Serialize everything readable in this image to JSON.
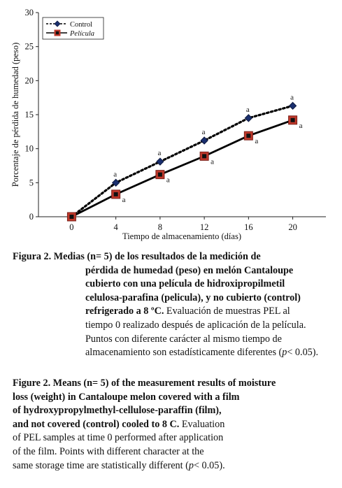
{
  "chart_data": {
    "type": "line",
    "ylabel": "Porcentaje de pérdida de humedad (peso)",
    "xlabel": "Tiempo de almacenamiento (días)",
    "x": [
      0,
      4,
      8,
      12,
      16,
      20
    ],
    "xlim": [
      -3,
      23
    ],
    "ylim": [
      0,
      30
    ],
    "yticks": [
      0,
      5,
      10,
      15,
      20,
      25,
      30
    ],
    "xticks": [
      0,
      4,
      8,
      12,
      16,
      20
    ],
    "grid": false,
    "legend_position": "top-left",
    "series": [
      {
        "name": "Control",
        "style": "dotted",
        "marker": "diamond",
        "color": "#1a2f6e",
        "values": [
          0,
          5.0,
          8.1,
          11.2,
          14.5,
          16.3
        ],
        "labels": [
          "",
          "a",
          "a",
          "a",
          "a",
          "a"
        ]
      },
      {
        "name": "Película",
        "style": "solid",
        "marker": "square",
        "color": "#c0392b",
        "values": [
          0,
          3.3,
          6.2,
          8.9,
          11.9,
          14.2
        ],
        "labels": [
          "",
          "a",
          "a",
          "a",
          "a",
          "a"
        ]
      }
    ]
  },
  "caption_es": {
    "label": "Figura 2.",
    "bold": "Medias (n= 5) de los resultados de la medición de pérdida de humedad (peso) en melón Cantaloupe cubierto con una película de hidroxipropilmetil celulosa-parafina (pelicula), y no cubierto (control) refrigerado a 8 ºC.",
    "lines": [
      "Medias (n= 5) de los resultados de la medición de",
      "pérdida de humedad (peso) en melón Cantaloupe",
      "cubierto con una película de hidroxipropilmetil",
      "celulosa-parafina (pelicula), y no cubierto (control)"
    ],
    "last_bold": "refrigerado a 8 ºC.",
    "normal_1": " Evaluación de muestras PEL al",
    "normal_2": "tiempo 0 realizado después de aplicación de la película.",
    "normal_3": "Puntos con diferente carácter al mismo tiempo de",
    "normal_4": "almacenamiento son estadísticamente diferentes (",
    "p": "p",
    "tail": "< 0.05)."
  },
  "caption_en": {
    "label": "Figure 2.",
    "lines": [
      "Means (n= 5) of the measurement results of moisture",
      "loss (weight) in Cantaloupe melon covered with a film",
      "of hydroxypropylmethyl-cellulose-paraffin (film),"
    ],
    "last_bold": "and not covered (control) cooled to 8 C.",
    "normal_1": " Evaluation",
    "normal_2": "of PEL samples at time 0 performed after application",
    "normal_3": "of the film. Points with different character at the",
    "normal_4": "same storage time are statistically different (",
    "p": "p",
    "tail": "< 0.05)."
  }
}
